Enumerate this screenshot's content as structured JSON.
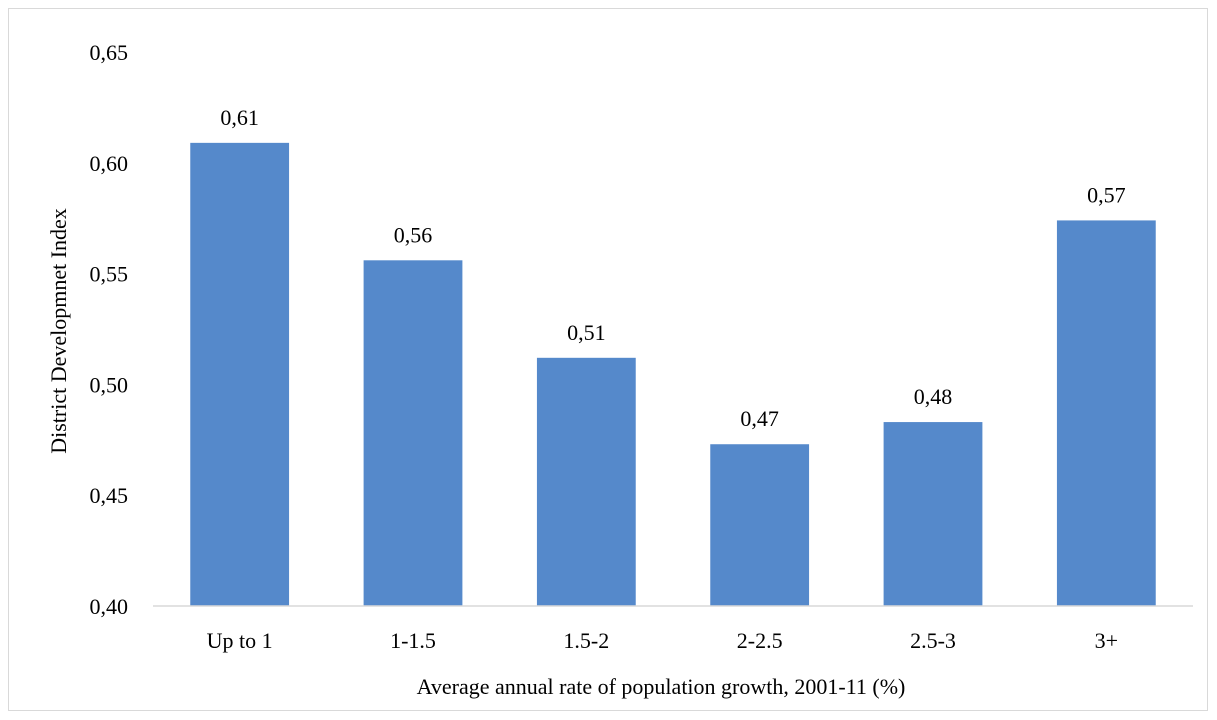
{
  "chart_data": {
    "type": "bar",
    "title": "",
    "xlabel": "Average annual rate of population growth, 2001-11 (%)",
    "ylabel": "District Developmnet Index",
    "categories": [
      "Up to 1",
      "1-1.5",
      "1.5-2",
      "2-2.5",
      "2.5-3",
      "3+"
    ],
    "values": [
      0.609,
      0.556,
      0.512,
      0.473,
      0.483,
      0.574
    ],
    "data_labels": [
      "0,61",
      "0,56",
      "0,51",
      "0,47",
      "0,48",
      "0,57"
    ],
    "ylim": [
      0.4,
      0.65
    ],
    "yticks": [
      0.4,
      0.45,
      0.5,
      0.55,
      0.6,
      0.65
    ],
    "ytick_labels": [
      "0,40",
      "0,45",
      "0,50",
      "0,55",
      "0,60",
      "0,65"
    ],
    "bar_color": "#5589cb",
    "grid": false,
    "legend": "none"
  }
}
